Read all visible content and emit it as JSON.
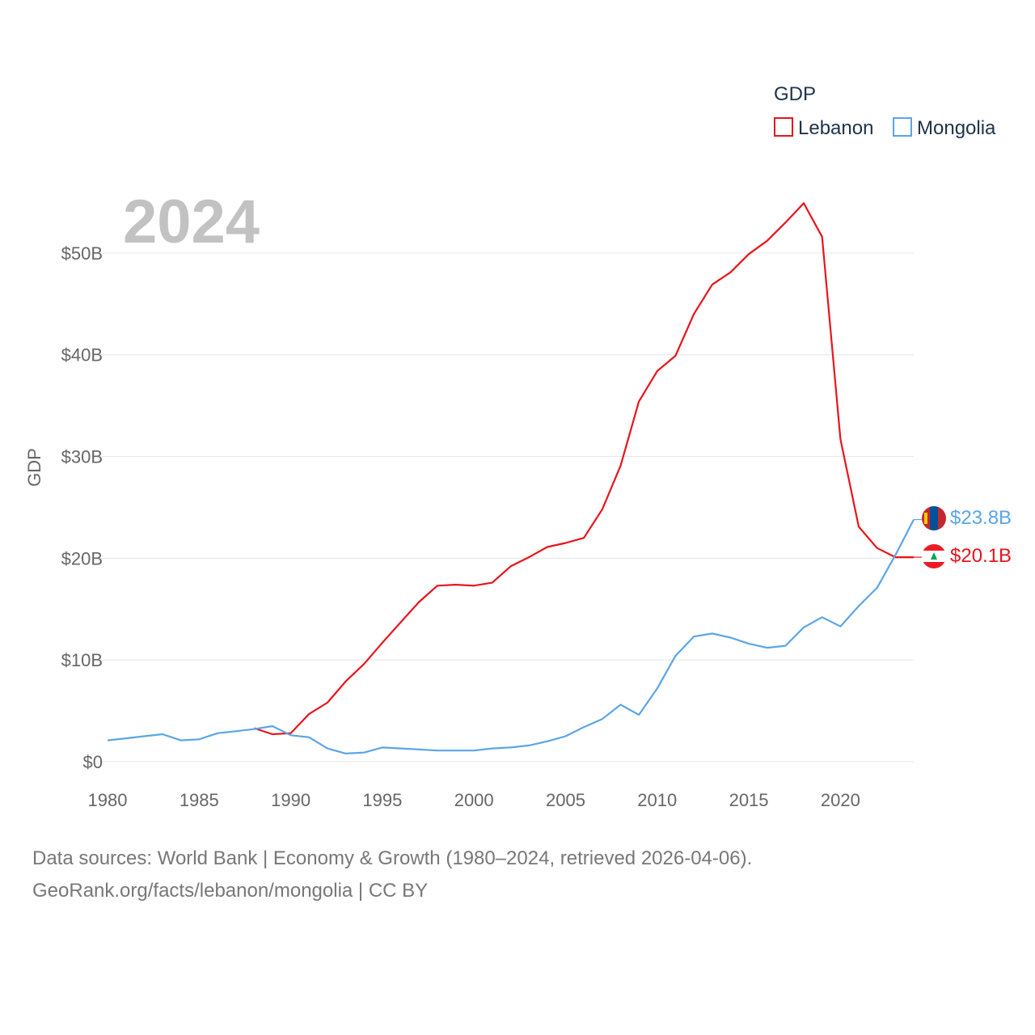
{
  "chart_data": {
    "type": "line",
    "title": "GDP",
    "current_year_label": "2024",
    "xlabel": "",
    "ylabel": "GDP",
    "xlim": [
      1980,
      2024
    ],
    "ylim": [
      0,
      55
    ],
    "x_ticks": [
      "1980",
      "1985",
      "1990",
      "1995",
      "2000",
      "2005",
      "2010",
      "2015",
      "2020"
    ],
    "y_ticks": [
      {
        "value": 0,
        "label": "$0"
      },
      {
        "value": 10,
        "label": "$10B"
      },
      {
        "value": 20,
        "label": "$20B"
      },
      {
        "value": 30,
        "label": "$30B"
      },
      {
        "value": 40,
        "label": "$40B"
      },
      {
        "value": 50,
        "label": "$50B"
      }
    ],
    "legend": {
      "title": "GDP",
      "placement": "top-right"
    },
    "series": [
      {
        "name": "Lebanon",
        "color": "#e8141c",
        "end_label": "$20.1B",
        "flag": "lebanon-flag",
        "x": [
          1988,
          1989,
          1990,
          1991,
          1992,
          1993,
          1994,
          1995,
          1996,
          1997,
          1998,
          1999,
          2000,
          2001,
          2002,
          2003,
          2004,
          2005,
          2006,
          2007,
          2008,
          2009,
          2010,
          2011,
          2012,
          2013,
          2014,
          2015,
          2016,
          2017,
          2018,
          2019,
          2020,
          2021,
          2022,
          2023,
          2024
        ],
        "values": [
          3.3,
          2.7,
          2.8,
          4.7,
          5.8,
          7.9,
          9.6,
          11.7,
          13.7,
          15.7,
          17.3,
          17.4,
          17.3,
          17.6,
          19.2,
          20.1,
          21.1,
          21.5,
          22.0,
          24.8,
          29.1,
          35.4,
          38.4,
          39.9,
          44.0,
          46.9,
          48.1,
          49.9,
          51.2,
          53.0,
          54.9,
          51.6,
          31.7,
          23.1,
          21.0,
          20.1,
          20.1
        ]
      },
      {
        "name": "Mongolia",
        "color": "#5ba5e5",
        "end_label": "$23.8B",
        "flag": "mongolia-flag",
        "x": [
          1980,
          1981,
          1982,
          1983,
          1984,
          1985,
          1986,
          1987,
          1988,
          1989,
          1990,
          1991,
          1992,
          1993,
          1994,
          1995,
          1996,
          1997,
          1998,
          1999,
          2000,
          2001,
          2002,
          2003,
          2004,
          2005,
          2006,
          2007,
          2008,
          2009,
          2010,
          2011,
          2012,
          2013,
          2014,
          2015,
          2016,
          2017,
          2018,
          2019,
          2020,
          2021,
          2022,
          2023,
          2024
        ],
        "values": [
          2.1,
          2.3,
          2.5,
          2.7,
          2.1,
          2.2,
          2.8,
          3.0,
          3.2,
          3.5,
          2.6,
          2.4,
          1.3,
          0.8,
          0.9,
          1.4,
          1.3,
          1.2,
          1.1,
          1.1,
          1.1,
          1.3,
          1.4,
          1.6,
          2.0,
          2.5,
          3.4,
          4.2,
          5.6,
          4.6,
          7.2,
          10.4,
          12.3,
          12.6,
          12.2,
          11.6,
          11.2,
          11.4,
          13.2,
          14.2,
          13.3,
          15.3,
          17.1,
          20.3,
          23.8
        ]
      }
    ]
  },
  "footer": {
    "source_line": "Data sources: World Bank | Economy & Growth (1980–2024, retrieved 2026-04-06).",
    "credit_line": "GeoRank.org/facts/lebanon/mongolia | CC BY"
  }
}
